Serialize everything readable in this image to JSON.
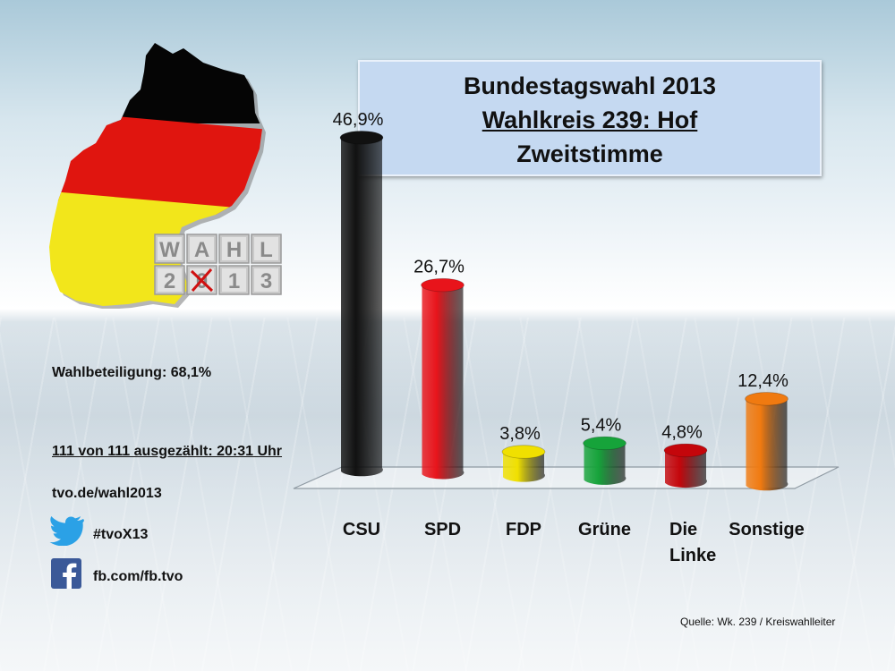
{
  "header": {
    "line1": "Bundestagswahl 2013",
    "line2": "Wahlkreis 239: Hof",
    "line3": "Zweitstimme"
  },
  "logo": {
    "top_letters": [
      "W",
      "A",
      "H",
      "L"
    ],
    "bottom_letters": [
      "2",
      "0",
      "1",
      "3"
    ]
  },
  "info": {
    "turnout": "Wahlbeteiligung: 68,1%",
    "counted": "111 von 111 ausgezählt: 20:31 Uhr",
    "website": "tvo.de/wahl2013",
    "twitter": "#tvoX13",
    "facebook": "fb.com/fb.tvo"
  },
  "icons": {
    "map": "germany-map-icon",
    "twitter": "twitter-bird-icon",
    "facebook": "facebook-icon"
  },
  "source": "Quelle: Wk. 239 / Kreiswahlleiter",
  "chart_data": {
    "type": "bar",
    "categories": [
      "CSU",
      "SPD",
      "FDP",
      "Grüne",
      "Die Linke",
      "Sonstige"
    ],
    "category_lines": [
      [
        "CSU"
      ],
      [
        "SPD"
      ],
      [
        "FDP"
      ],
      [
        "Grüne"
      ],
      [
        "Die",
        "Linke"
      ],
      [
        "Sonstige"
      ]
    ],
    "values": [
      46.9,
      26.7,
      3.8,
      5.4,
      4.8,
      12.4
    ],
    "value_labels": [
      "46,9%",
      "26,7%",
      "3,8%",
      "5,4%",
      "4,8%",
      "12,4%"
    ],
    "colors": [
      "#111111",
      "#e8141b",
      "#f0e000",
      "#16a33a",
      "#c4060b",
      "#f07a10"
    ],
    "unit": "%",
    "ylim": [
      0,
      50
    ],
    "grid": false,
    "legend": "none"
  }
}
